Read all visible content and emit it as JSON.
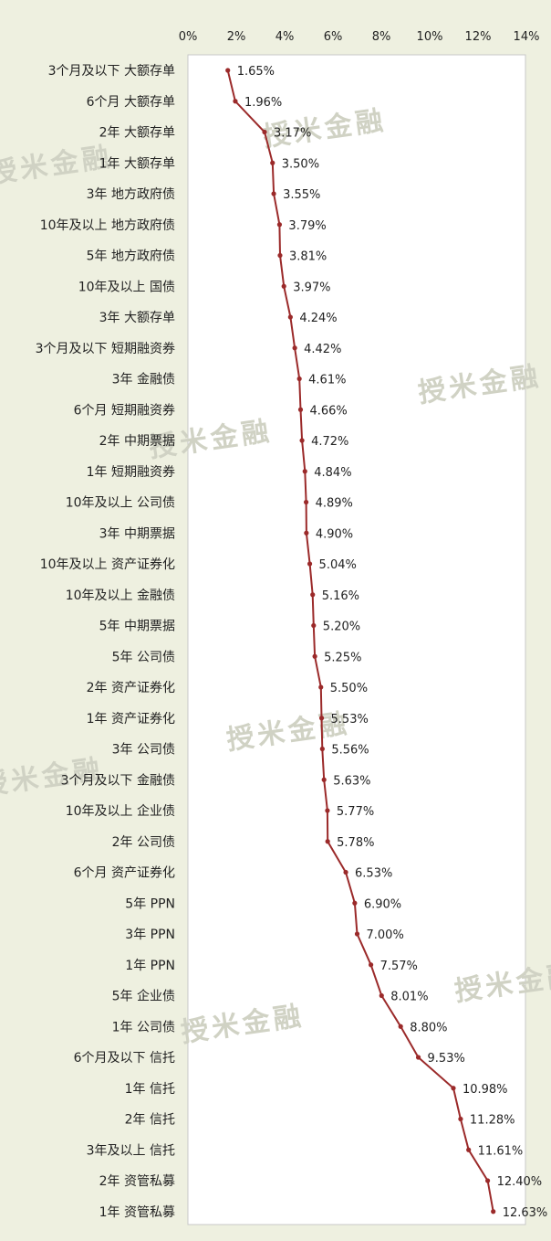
{
  "watermark_text": "授米金融",
  "chart_data": {
    "type": "line",
    "orientation": "horizontal",
    "x_ticks": [
      "0%",
      "2%",
      "4%",
      "6%",
      "8%",
      "10%",
      "12%",
      "14%"
    ],
    "xlim": [
      0,
      14
    ],
    "categories": [
      "3个月及以下 大额存单",
      "6个月 大额存单",
      "2年 大额存单",
      "1年 大额存单",
      "3年 地方政府债",
      "10年及以上 地方政府债",
      "5年 地方政府债",
      "10年及以上 国债",
      "3年 大额存单",
      "3个月及以下 短期融资券",
      "3年 金融债",
      "6个月 短期融资券",
      "2年 中期票据",
      "1年 短期融资券",
      "10年及以上 公司债",
      "3年 中期票据",
      "10年及以上 资产证券化",
      "10年及以上 金融债",
      "5年 中期票据",
      "5年 公司债",
      "2年 资产证券化",
      "1年 资产证券化",
      "3年 公司债",
      "3个月及以下 金融债",
      "10年及以上 企业债",
      "2年 公司债",
      "6个月 资产证券化",
      "5年 PPN",
      "3年 PPN",
      "1年 PPN",
      "5年 企业债",
      "1年 公司债",
      "6个月及以下 信托",
      "1年 信托",
      "2年 信托",
      "3年及以上 信托",
      "2年 资管私募",
      "1年 资管私募"
    ],
    "values": [
      1.65,
      1.96,
      3.17,
      3.5,
      3.55,
      3.79,
      3.81,
      3.97,
      4.24,
      4.42,
      4.61,
      4.66,
      4.72,
      4.84,
      4.89,
      4.9,
      5.04,
      5.16,
      5.2,
      5.25,
      5.5,
      5.53,
      5.56,
      5.63,
      5.77,
      5.78,
      6.53,
      6.9,
      7.0,
      7.57,
      8.01,
      8.8,
      9.53,
      10.98,
      11.28,
      11.61,
      12.4,
      12.63
    ],
    "data_labels": [
      "1.65%",
      "1.96%",
      "3.17%",
      "3.50%",
      "3.55%",
      "3.79%",
      "3.81%",
      "3.97%",
      "4.24%",
      "4.42%",
      "4.61%",
      "4.66%",
      "4.72%",
      "4.84%",
      "4.89%",
      "4.90%",
      "5.04%",
      "5.16%",
      "5.20%",
      "5.25%",
      "5.50%",
      "5.53%",
      "5.56%",
      "5.63%",
      "5.77%",
      "5.78%",
      "6.53%",
      "6.90%",
      "7.00%",
      "7.57%",
      "8.01%",
      "8.80%",
      "9.53%",
      "10.98%",
      "11.28%",
      "11.61%",
      "12.40%",
      "12.63%"
    ],
    "line_color": "#9b2a2a",
    "plot_background": "#ffffff",
    "page_background": "#eef0e0",
    "grid": false
  }
}
